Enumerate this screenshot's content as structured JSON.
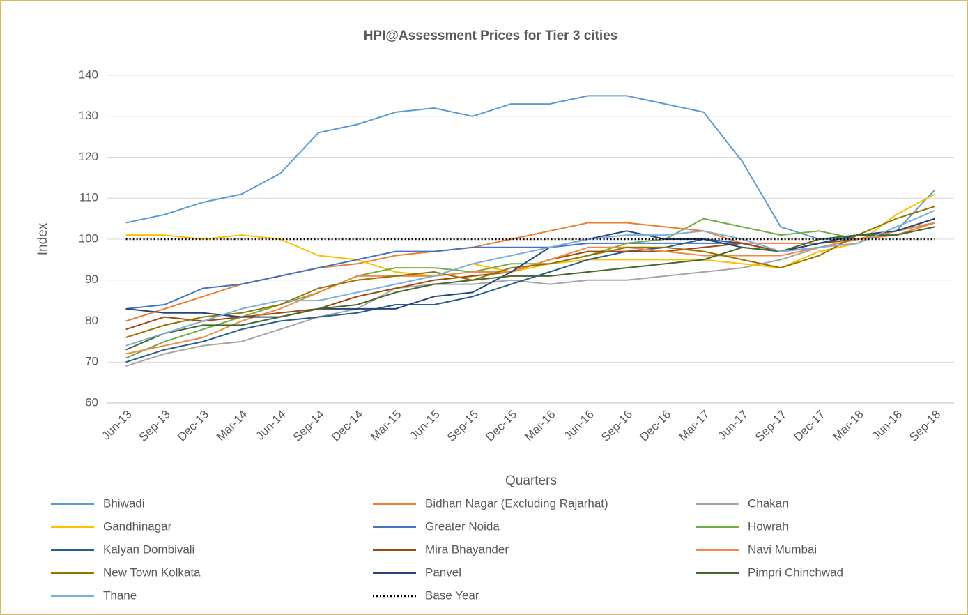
{
  "chart_data": {
    "type": "line",
    "title": "HPI@Assessment Prices for Tier 3 cities",
    "x_label": "Quarters",
    "y_label": "Index",
    "categories": [
      "Jun-13",
      "Sep-13",
      "Dec-13",
      "Mar-14",
      "Jun-14",
      "Sep-14",
      "Dec-14",
      "Mar-15",
      "Jun-15",
      "Sep-15",
      "Dec-15",
      "Mar-16",
      "Jun-16",
      "Sep-16",
      "Dec-16",
      "Mar-17",
      "Jun-17",
      "Sep-17",
      "Dec-17",
      "Mar-18",
      "Jun-18",
      "Sep-18"
    ],
    "ylim": [
      60,
      140
    ],
    "yticks": [
      60,
      70,
      80,
      90,
      100,
      110,
      120,
      130,
      140
    ],
    "grid": true,
    "legend": "bottom",
    "series": [
      {
        "name": "Bhiwadi",
        "color": "#5b9bd5",
        "values": [
          104,
          106,
          109,
          111,
          116,
          126,
          128,
          131,
          132,
          130,
          133,
          133,
          135,
          135,
          133,
          131,
          119,
          103,
          100,
          100,
          102,
          112
        ]
      },
      {
        "name": "Bidhan Nagar (Excluding Rajarhat)",
        "color": "#ed7d31",
        "values": [
          80,
          83,
          86,
          89,
          91,
          93,
          94,
          96,
          97,
          98,
          100,
          102,
          104,
          104,
          103,
          102,
          99,
          99,
          99,
          100,
          101,
          104
        ]
      },
      {
        "name": "Chakan",
        "color": "#a5a5a5",
        "values": [
          69,
          72,
          74,
          75,
          78,
          81,
          83,
          88,
          89,
          89,
          90,
          89,
          90,
          90,
          91,
          92,
          93,
          95,
          98,
          100,
          102,
          104
        ]
      },
      {
        "name": "Gandhinagar",
        "color": "#ffc000",
        "values": [
          101,
          101,
          100,
          101,
          100,
          96,
          95,
          92,
          91,
          94,
          92,
          94,
          95,
          95,
          95,
          95,
          94,
          93,
          97,
          99,
          106,
          111
        ]
      },
      {
        "name": "Greater Noida",
        "color": "#4472c4",
        "values": [
          83,
          84,
          88,
          89,
          91,
          93,
          95,
          97,
          97,
          98,
          98,
          98,
          99,
          99,
          99,
          99,
          99,
          97,
          99,
          100,
          102,
          105
        ]
      },
      {
        "name": "Howrah",
        "color": "#70ad47",
        "values": [
          71,
          75,
          78,
          81,
          84,
          87,
          91,
          93,
          93,
          92,
          94,
          94,
          96,
          99,
          100,
          105,
          103,
          101,
          102,
          100,
          102,
          104
        ]
      },
      {
        "name": "Kalyan Dombivali",
        "color": "#255e91",
        "values": [
          70,
          73,
          75,
          78,
          80,
          81,
          82,
          84,
          84,
          86,
          89,
          92,
          95,
          97,
          98,
          100,
          99,
          97,
          98,
          100,
          102,
          105
        ]
      },
      {
        "name": "Mira Bhayander",
        "color": "#9e480e",
        "values": [
          78,
          81,
          80,
          81,
          82,
          83,
          86,
          88,
          90,
          91,
          92,
          95,
          97,
          97,
          97,
          98,
          99,
          97,
          99,
          100,
          102,
          104
        ]
      },
      {
        "name": "Navi Mumbai",
        "color": "#f08a42",
        "values": [
          72,
          74,
          76,
          80,
          83,
          87,
          91,
          91,
          91,
          92,
          92,
          95,
          98,
          98,
          97,
          96,
          96,
          96,
          98,
          100,
          102,
          104
        ]
      },
      {
        "name": "New Town Kolkata",
        "color": "#997300",
        "values": [
          76,
          79,
          81,
          82,
          84,
          88,
          90,
          91,
          92,
          90,
          93,
          94,
          96,
          98,
          98,
          97,
          95,
          93,
          96,
          101,
          105,
          108
        ]
      },
      {
        "name": "Panvel",
        "color": "#264478",
        "values": [
          83,
          82,
          82,
          81,
          81,
          83,
          83,
          83,
          86,
          87,
          92,
          98,
          100,
          102,
          100,
          100,
          98,
          97,
          99,
          101,
          102,
          105
        ]
      },
      {
        "name": "Pimpri Chinchwad",
        "color": "#43682b",
        "values": [
          73,
          77,
          79,
          79,
          81,
          83,
          84,
          87,
          89,
          90,
          91,
          91,
          92,
          93,
          94,
          95,
          98,
          97,
          100,
          101,
          101,
          103
        ]
      },
      {
        "name": "Thane",
        "color": "#7cafdd",
        "values": [
          74,
          77,
          80,
          83,
          85,
          85,
          87,
          89,
          91,
          94,
          96,
          98,
          100,
          101,
          101,
          102,
          100,
          97,
          98,
          99,
          103,
          107
        ]
      },
      {
        "name": "Base Year",
        "color": "#000000",
        "style": "dotted",
        "values": [
          100,
          100,
          100,
          100,
          100,
          100,
          100,
          100,
          100,
          100,
          100,
          100,
          100,
          100,
          100,
          100,
          100,
          100,
          100,
          100,
          100,
          100
        ]
      }
    ]
  }
}
